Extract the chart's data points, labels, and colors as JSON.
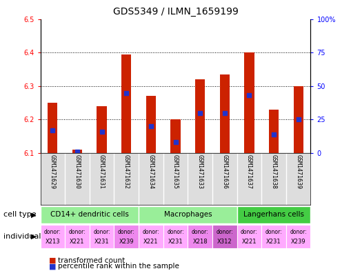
{
  "title": "GDS5349 / ILMN_1659199",
  "samples": [
    "GSM1471629",
    "GSM1471630",
    "GSM1471631",
    "GSM1471632",
    "GSM1471634",
    "GSM1471635",
    "GSM1471633",
    "GSM1471636",
    "GSM1471637",
    "GSM1471638",
    "GSM1471639"
  ],
  "transformed_count": [
    6.25,
    6.11,
    6.24,
    6.395,
    6.27,
    6.2,
    6.32,
    6.335,
    6.4,
    6.23,
    6.3
  ],
  "percentile_rank": [
    17,
    1,
    16,
    45,
    20,
    8,
    30,
    30,
    43,
    14,
    25
  ],
  "ylim_left": [
    6.1,
    6.5
  ],
  "ylim_right": [
    0,
    100
  ],
  "yticks_left": [
    6.1,
    6.2,
    6.3,
    6.4,
    6.5
  ],
  "yticks_right": [
    0,
    25,
    50,
    75,
    100
  ],
  "bar_color": "#cc2200",
  "blue_color": "#2233cc",
  "cell_type_ranges": [
    [
      0,
      4,
      "CD14+ dendritic cells",
      "#99ee99"
    ],
    [
      4,
      8,
      "Macrophages",
      "#99ee99"
    ],
    [
      8,
      11,
      "Langerhans cells",
      "#44cc44"
    ]
  ],
  "donors": [
    "X213",
    "X221",
    "X231",
    "X239",
    "X221",
    "X231",
    "X218",
    "X312",
    "X221",
    "X231",
    "X239"
  ],
  "donor_colors": [
    "#ffaaff",
    "#ffaaff",
    "#ffaaff",
    "#ee88ee",
    "#ffaaff",
    "#ffaaff",
    "#ee88ee",
    "#cc66cc",
    "#ffaaff",
    "#ffaaff",
    "#ffaaff"
  ],
  "legend_red": "transformed count",
  "legend_blue": "percentile rank within the sample",
  "base": 6.1,
  "grid_color": "#000000",
  "title_fontsize": 10,
  "tick_fontsize": 7,
  "bar_width": 0.4
}
